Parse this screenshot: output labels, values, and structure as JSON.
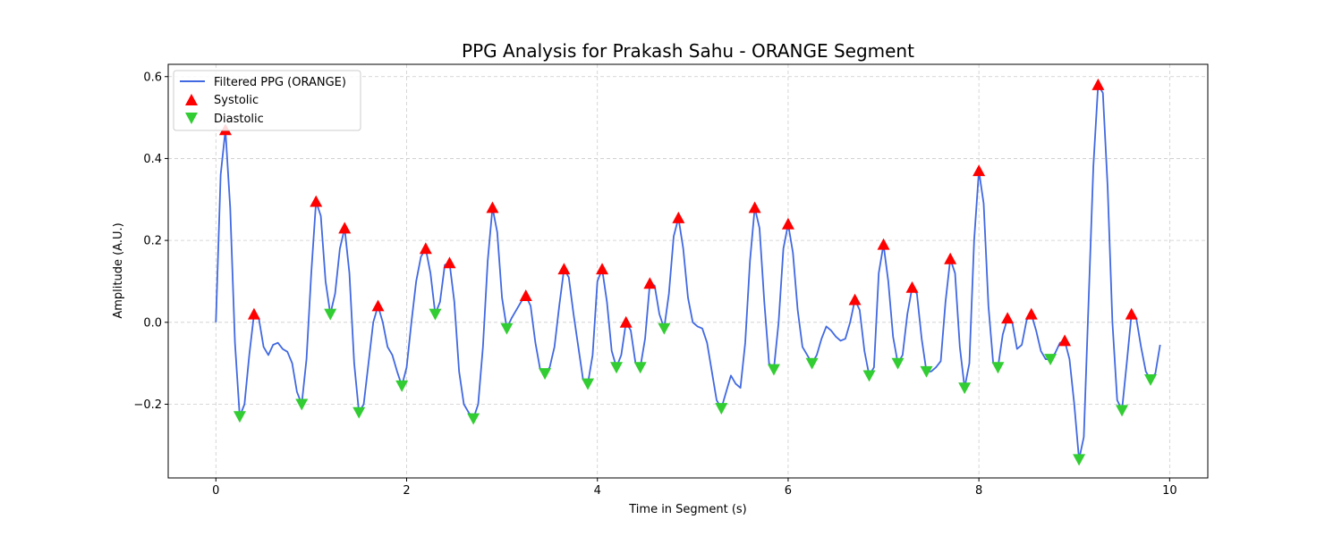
{
  "chart_data": {
    "type": "line",
    "title": "PPG Analysis for Prakash Sahu - ORANGE Segment",
    "xlabel": "Time in Segment (s)",
    "ylabel": "Amplitude (A.U.)",
    "xlim": [
      -0.5,
      10.4
    ],
    "ylim": [
      -0.38,
      0.63
    ],
    "x_ticks": [
      0,
      2,
      4,
      6,
      8,
      10
    ],
    "x_tick_labels": [
      "0",
      "2",
      "4",
      "6",
      "8",
      "10"
    ],
    "y_ticks": [
      -0.2,
      0.0,
      0.2,
      0.4,
      0.6
    ],
    "y_tick_labels": [
      "−0.2",
      "0.0",
      "0.2",
      "0.4",
      "0.6"
    ],
    "grid": true,
    "legend_position": "top-left",
    "colors": {
      "line": "#4169e1",
      "systolic": "#ff0000",
      "diastolic": "#32cd32",
      "grid": "#cccccc"
    },
    "series": [
      {
        "name": "Filtered PPG (ORANGE)",
        "kind": "line",
        "points": [
          [
            0.0,
            0.0
          ],
          [
            0.05,
            0.36
          ],
          [
            0.1,
            0.47
          ],
          [
            0.15,
            0.28
          ],
          [
            0.2,
            -0.05
          ],
          [
            0.25,
            -0.23
          ],
          [
            0.3,
            -0.2
          ],
          [
            0.35,
            -0.08
          ],
          [
            0.4,
            0.02
          ],
          [
            0.45,
            0.01
          ],
          [
            0.5,
            -0.06
          ],
          [
            0.55,
            -0.08
          ],
          [
            0.6,
            -0.055
          ],
          [
            0.65,
            -0.05
          ],
          [
            0.7,
            -0.065
          ],
          [
            0.75,
            -0.072
          ],
          [
            0.8,
            -0.1
          ],
          [
            0.85,
            -0.17
          ],
          [
            0.9,
            -0.2
          ],
          [
            0.95,
            -0.09
          ],
          [
            1.0,
            0.12
          ],
          [
            1.05,
            0.295
          ],
          [
            1.1,
            0.26
          ],
          [
            1.15,
            0.1
          ],
          [
            1.2,
            0.02
          ],
          [
            1.25,
            0.07
          ],
          [
            1.3,
            0.18
          ],
          [
            1.35,
            0.23
          ],
          [
            1.4,
            0.12
          ],
          [
            1.45,
            -0.1
          ],
          [
            1.5,
            -0.22
          ],
          [
            1.55,
            -0.2
          ],
          [
            1.6,
            -0.1
          ],
          [
            1.65,
            0.0
          ],
          [
            1.7,
            0.04
          ],
          [
            1.75,
            0.0
          ],
          [
            1.8,
            -0.06
          ],
          [
            1.85,
            -0.08
          ],
          [
            1.9,
            -0.12
          ],
          [
            1.95,
            -0.155
          ],
          [
            2.0,
            -0.11
          ],
          [
            2.05,
            0.0
          ],
          [
            2.1,
            0.1
          ],
          [
            2.15,
            0.16
          ],
          [
            2.2,
            0.18
          ],
          [
            2.25,
            0.12
          ],
          [
            2.3,
            0.02
          ],
          [
            2.35,
            0.05
          ],
          [
            2.4,
            0.14
          ],
          [
            2.45,
            0.145
          ],
          [
            2.5,
            0.05
          ],
          [
            2.55,
            -0.12
          ],
          [
            2.6,
            -0.2
          ],
          [
            2.65,
            -0.22
          ],
          [
            2.7,
            -0.235
          ],
          [
            2.75,
            -0.2
          ],
          [
            2.8,
            -0.06
          ],
          [
            2.85,
            0.15
          ],
          [
            2.9,
            0.28
          ],
          [
            2.95,
            0.22
          ],
          [
            3.0,
            0.06
          ],
          [
            3.05,
            -0.015
          ],
          [
            3.1,
            0.01
          ],
          [
            3.15,
            0.03
          ],
          [
            3.2,
            0.05
          ],
          [
            3.25,
            0.065
          ],
          [
            3.3,
            0.04
          ],
          [
            3.35,
            -0.05
          ],
          [
            3.4,
            -0.115
          ],
          [
            3.45,
            -0.125
          ],
          [
            3.5,
            -0.11
          ],
          [
            3.55,
            -0.06
          ],
          [
            3.6,
            0.04
          ],
          [
            3.65,
            0.13
          ],
          [
            3.7,
            0.11
          ],
          [
            3.75,
            0.02
          ],
          [
            3.8,
            -0.06
          ],
          [
            3.85,
            -0.14
          ],
          [
            3.9,
            -0.15
          ],
          [
            3.95,
            -0.08
          ],
          [
            4.0,
            0.1
          ],
          [
            4.05,
            0.13
          ],
          [
            4.1,
            0.05
          ],
          [
            4.15,
            -0.07
          ],
          [
            4.2,
            -0.11
          ],
          [
            4.25,
            -0.08
          ],
          [
            4.3,
            0.0
          ],
          [
            4.35,
            -0.02
          ],
          [
            4.4,
            -0.1
          ],
          [
            4.45,
            -0.11
          ],
          [
            4.5,
            -0.04
          ],
          [
            4.55,
            0.095
          ],
          [
            4.6,
            0.09
          ],
          [
            4.65,
            0.02
          ],
          [
            4.7,
            -0.015
          ],
          [
            4.75,
            0.07
          ],
          [
            4.8,
            0.21
          ],
          [
            4.85,
            0.255
          ],
          [
            4.9,
            0.18
          ],
          [
            4.95,
            0.06
          ],
          [
            5.0,
            0.0
          ],
          [
            5.05,
            -0.01
          ],
          [
            5.1,
            -0.015
          ],
          [
            5.15,
            -0.05
          ],
          [
            5.2,
            -0.12
          ],
          [
            5.25,
            -0.19
          ],
          [
            5.3,
            -0.21
          ],
          [
            5.35,
            -0.17
          ],
          [
            5.4,
            -0.13
          ],
          [
            5.45,
            -0.15
          ],
          [
            5.5,
            -0.16
          ],
          [
            5.55,
            -0.05
          ],
          [
            5.6,
            0.15
          ],
          [
            5.65,
            0.28
          ],
          [
            5.7,
            0.23
          ],
          [
            5.75,
            0.05
          ],
          [
            5.8,
            -0.1
          ],
          [
            5.85,
            -0.115
          ],
          [
            5.9,
            0.0
          ],
          [
            5.95,
            0.18
          ],
          [
            6.0,
            0.24
          ],
          [
            6.05,
            0.17
          ],
          [
            6.1,
            0.03
          ],
          [
            6.15,
            -0.06
          ],
          [
            6.2,
            -0.08
          ],
          [
            6.25,
            -0.1
          ],
          [
            6.3,
            -0.08
          ],
          [
            6.35,
            -0.04
          ],
          [
            6.4,
            -0.01
          ],
          [
            6.45,
            -0.02
          ],
          [
            6.5,
            -0.035
          ],
          [
            6.55,
            -0.045
          ],
          [
            6.6,
            -0.04
          ],
          [
            6.65,
            0.0
          ],
          [
            6.7,
            0.055
          ],
          [
            6.75,
            0.03
          ],
          [
            6.8,
            -0.07
          ],
          [
            6.85,
            -0.13
          ],
          [
            6.9,
            -0.11
          ],
          [
            6.95,
            0.12
          ],
          [
            7.0,
            0.19
          ],
          [
            7.05,
            0.1
          ],
          [
            7.1,
            -0.035
          ],
          [
            7.15,
            -0.1
          ],
          [
            7.2,
            -0.08
          ],
          [
            7.25,
            0.02
          ],
          [
            7.3,
            0.085
          ],
          [
            7.35,
            0.07
          ],
          [
            7.4,
            -0.04
          ],
          [
            7.45,
            -0.12
          ],
          [
            7.5,
            -0.12
          ],
          [
            7.55,
            -0.11
          ],
          [
            7.6,
            -0.095
          ],
          [
            7.65,
            0.05
          ],
          [
            7.7,
            0.155
          ],
          [
            7.75,
            0.12
          ],
          [
            7.8,
            -0.06
          ],
          [
            7.85,
            -0.16
          ],
          [
            7.9,
            -0.1
          ],
          [
            7.95,
            0.2
          ],
          [
            8.0,
            0.37
          ],
          [
            8.05,
            0.29
          ],
          [
            8.1,
            0.04
          ],
          [
            8.15,
            -0.1
          ],
          [
            8.2,
            -0.11
          ],
          [
            8.25,
            -0.03
          ],
          [
            8.3,
            0.01
          ],
          [
            8.35,
            0.0
          ],
          [
            8.4,
            -0.065
          ],
          [
            8.45,
            -0.055
          ],
          [
            8.5,
            0.005
          ],
          [
            8.55,
            0.02
          ],
          [
            8.6,
            -0.02
          ],
          [
            8.65,
            -0.07
          ],
          [
            8.7,
            -0.09
          ],
          [
            8.75,
            -0.09
          ],
          [
            8.8,
            -0.075
          ],
          [
            8.85,
            -0.05
          ],
          [
            8.9,
            -0.045
          ],
          [
            8.95,
            -0.09
          ],
          [
            9.0,
            -0.2
          ],
          [
            9.05,
            -0.335
          ],
          [
            9.1,
            -0.28
          ],
          [
            9.15,
            0.05
          ],
          [
            9.2,
            0.38
          ],
          [
            9.25,
            0.58
          ],
          [
            9.3,
            0.56
          ],
          [
            9.35,
            0.33
          ],
          [
            9.4,
            0.0
          ],
          [
            9.45,
            -0.19
          ],
          [
            9.5,
            -0.215
          ],
          [
            9.55,
            -0.1
          ],
          [
            9.6,
            0.02
          ],
          [
            9.65,
            0.01
          ],
          [
            9.7,
            -0.06
          ],
          [
            9.75,
            -0.12
          ],
          [
            9.8,
            -0.14
          ],
          [
            9.85,
            -0.125
          ],
          [
            9.9,
            -0.055
          ]
        ]
      },
      {
        "name": "Systolic",
        "kind": "markers",
        "marker": "triangle-up",
        "points": [
          [
            0.1,
            0.47
          ],
          [
            0.4,
            0.02
          ],
          [
            1.05,
            0.295
          ],
          [
            1.35,
            0.23
          ],
          [
            1.7,
            0.04
          ],
          [
            2.2,
            0.18
          ],
          [
            2.45,
            0.145
          ],
          [
            2.9,
            0.28
          ],
          [
            3.25,
            0.065
          ],
          [
            3.65,
            0.13
          ],
          [
            4.05,
            0.13
          ],
          [
            4.3,
            0.0
          ],
          [
            4.55,
            0.095
          ],
          [
            4.85,
            0.255
          ],
          [
            5.65,
            0.28
          ],
          [
            6.0,
            0.24
          ],
          [
            6.7,
            0.055
          ],
          [
            7.0,
            0.19
          ],
          [
            7.3,
            0.085
          ],
          [
            7.7,
            0.155
          ],
          [
            8.0,
            0.37
          ],
          [
            8.3,
            0.01
          ],
          [
            8.55,
            0.02
          ],
          [
            8.9,
            -0.045
          ],
          [
            9.25,
            0.58
          ],
          [
            9.6,
            0.02
          ]
        ]
      },
      {
        "name": "Diastolic",
        "kind": "markers",
        "marker": "triangle-down",
        "points": [
          [
            0.25,
            -0.23
          ],
          [
            0.9,
            -0.2
          ],
          [
            1.2,
            0.02
          ],
          [
            1.5,
            -0.22
          ],
          [
            1.95,
            -0.155
          ],
          [
            2.3,
            0.02
          ],
          [
            2.7,
            -0.235
          ],
          [
            3.05,
            -0.015
          ],
          [
            3.45,
            -0.125
          ],
          [
            3.9,
            -0.15
          ],
          [
            4.2,
            -0.11
          ],
          [
            4.45,
            -0.11
          ],
          [
            4.7,
            -0.015
          ],
          [
            5.3,
            -0.21
          ],
          [
            5.85,
            -0.115
          ],
          [
            6.25,
            -0.1
          ],
          [
            6.85,
            -0.13
          ],
          [
            7.15,
            -0.1
          ],
          [
            7.45,
            -0.12
          ],
          [
            7.85,
            -0.16
          ],
          [
            8.2,
            -0.11
          ],
          [
            8.75,
            -0.09
          ],
          [
            9.05,
            -0.335
          ],
          [
            9.5,
            -0.215
          ],
          [
            9.8,
            -0.14
          ]
        ]
      }
    ]
  }
}
